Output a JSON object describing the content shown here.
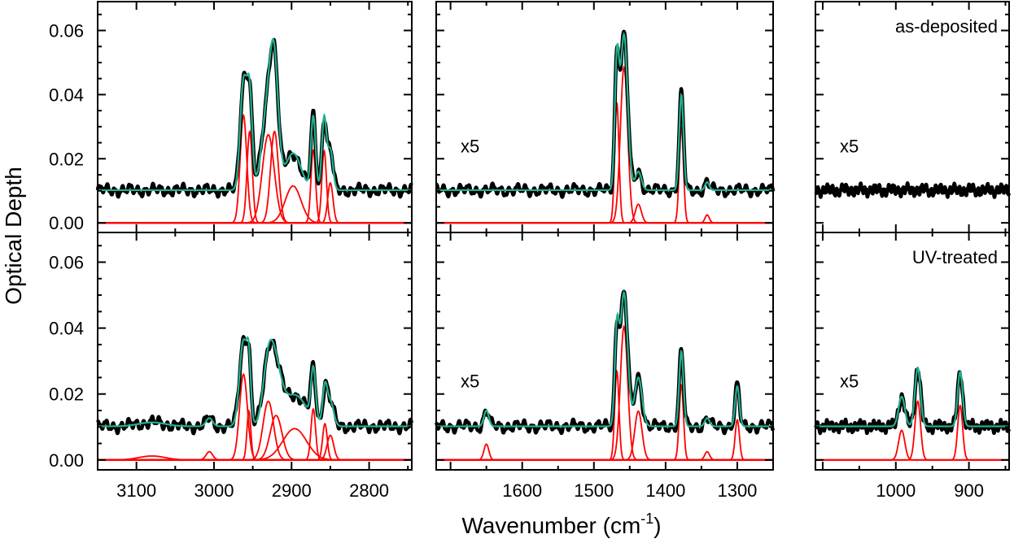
{
  "chart_data": {
    "type": "line",
    "ylabel": "Optical Depth",
    "xlabel_main": "Wavenumber (cm",
    "xlabel_sup": "-1",
    "xlabel_close": ")",
    "colors": {
      "data": "#000000",
      "fit": "#21b08f",
      "component": "#ff0000"
    },
    "ylim": [
      -0.003,
      0.069
    ],
    "yticks": [
      0.0,
      0.02,
      0.04,
      0.06
    ],
    "ytick_labels": [
      "0.00",
      "0.02",
      "0.04",
      "0.06"
    ],
    "columns": [
      {
        "xlim": [
          3150,
          2745
        ],
        "xticks": [
          3100,
          3000,
          2900,
          2800
        ],
        "xtick_labels": [
          "3100",
          "3000",
          "2900",
          "2800"
        ]
      },
      {
        "xlim": [
          1720,
          1250
        ],
        "xticks": [
          1600,
          1500,
          1400,
          1300
        ],
        "xtick_labels": [
          "1600",
          "1500",
          "1400",
          "1300"
        ]
      },
      {
        "xlim": [
          1110,
          845
        ],
        "xticks": [
          1000,
          900
        ],
        "xtick_labels": [
          "1000",
          "900"
        ]
      }
    ],
    "rows": [
      {
        "label": "as-deposited",
        "panels": [
          {
            "annotation": "",
            "baseline": 0.0102,
            "peaks": [
              {
                "center": 2962,
                "height": 0.0335,
                "fwhm": 10
              },
              {
                "center": 2954,
                "height": 0.0285,
                "fwhm": 8
              },
              {
                "center": 2930,
                "height": 0.0275,
                "fwhm": 18
              },
              {
                "center": 2922,
                "height": 0.0285,
                "fwhm": 12
              },
              {
                "center": 2898,
                "height": 0.0115,
                "fwhm": 24
              },
              {
                "center": 2872,
                "height": 0.0228,
                "fwhm": 7
              },
              {
                "center": 2858,
                "height": 0.0225,
                "fwhm": 7
              },
              {
                "center": 2850,
                "height": 0.0125,
                "fwhm": 8
              }
            ]
          },
          {
            "annotation": "x5",
            "baseline": 0.0102,
            "peaks": [
              {
                "center": 1468,
                "height": 0.0375,
                "fwhm": 7
              },
              {
                "center": 1458,
                "height": 0.0485,
                "fwhm": 12
              },
              {
                "center": 1438,
                "height": 0.0058,
                "fwhm": 10
              },
              {
                "center": 1378,
                "height": 0.0298,
                "fwhm": 7
              },
              {
                "center": 1342,
                "height": 0.0025,
                "fwhm": 7
              }
            ]
          },
          {
            "annotation": "x5",
            "baseline": 0.0102,
            "peaks": []
          }
        ]
      },
      {
        "label": "UV-treated",
        "panels": [
          {
            "annotation": "",
            "baseline": 0.0102,
            "peaks": [
              {
                "center": 3080,
                "height": 0.0012,
                "fwhm": 40
              },
              {
                "center": 3006,
                "height": 0.0025,
                "fwhm": 10
              },
              {
                "center": 2962,
                "height": 0.026,
                "fwhm": 12
              },
              {
                "center": 2955,
                "height": 0.0148,
                "fwhm": 6
              },
              {
                "center": 2930,
                "height": 0.0178,
                "fwhm": 16
              },
              {
                "center": 2920,
                "height": 0.0135,
                "fwhm": 18
              },
              {
                "center": 2896,
                "height": 0.0095,
                "fwhm": 36
              },
              {
                "center": 2872,
                "height": 0.0155,
                "fwhm": 7
              },
              {
                "center": 2857,
                "height": 0.011,
                "fwhm": 7
              },
              {
                "center": 2850,
                "height": 0.0075,
                "fwhm": 10
              }
            ]
          },
          {
            "annotation": "x5",
            "baseline": 0.0102,
            "peaks": [
              {
                "center": 1650,
                "height": 0.0048,
                "fwhm": 8
              },
              {
                "center": 1468,
                "height": 0.027,
                "fwhm": 7
              },
              {
                "center": 1458,
                "height": 0.0405,
                "fwhm": 12
              },
              {
                "center": 1438,
                "height": 0.0148,
                "fwhm": 12
              },
              {
                "center": 1378,
                "height": 0.0228,
                "fwhm": 7
              },
              {
                "center": 1342,
                "height": 0.0025,
                "fwhm": 8
              },
              {
                "center": 1300,
                "height": 0.0122,
                "fwhm": 7
              }
            ]
          },
          {
            "annotation": "x5",
            "baseline": 0.0102,
            "peaks": [
              {
                "center": 992,
                "height": 0.009,
                "fwhm": 10
              },
              {
                "center": 970,
                "height": 0.0178,
                "fwhm": 9
              },
              {
                "center": 912,
                "height": 0.0165,
                "fwhm": 8
              }
            ]
          }
        ]
      }
    ]
  }
}
